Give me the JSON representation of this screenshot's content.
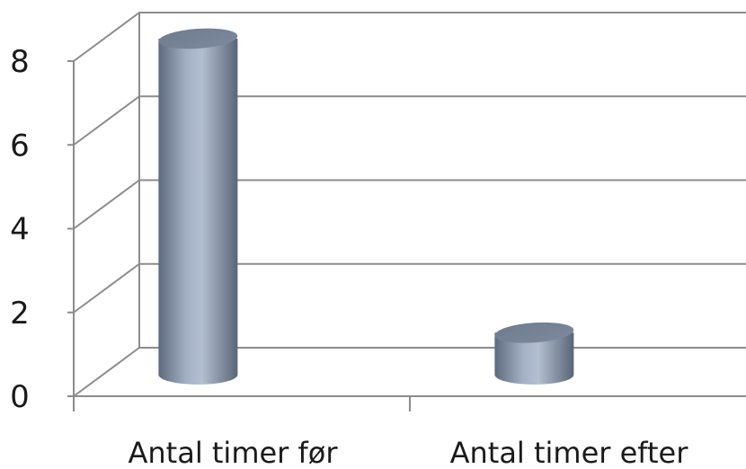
{
  "chart_data": {
    "type": "bar",
    "style": "3d-cylinder",
    "categories": [
      "Antal timer før",
      "Antal timer efter"
    ],
    "values": [
      8,
      1
    ],
    "ylim": [
      0,
      8
    ],
    "yticks": [
      "0",
      "2",
      "4",
      "6",
      "8"
    ],
    "grid": true,
    "bar_color": "#8e9bb0"
  }
}
